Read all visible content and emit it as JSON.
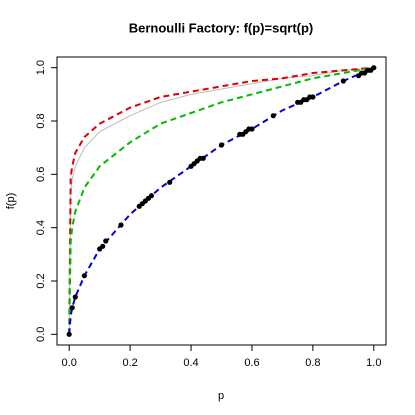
{
  "chart_data": {
    "type": "line",
    "title": "Bernoulli Factory: f(p)=sqrt(p)",
    "x_label": "p",
    "y_label": "f(p)",
    "x": [
      0,
      0.005,
      0.01,
      0.02,
      0.05,
      0.1,
      0.2,
      0.3,
      0.4,
      0.5,
      0.6,
      0.7,
      0.8,
      0.9,
      1
    ],
    "series": [
      {
        "color": "#bbbbbb",
        "dash": "solid",
        "values": [
          0,
          0.53,
          0.58,
          0.63,
          0.7,
          0.76,
          0.82,
          0.87,
          0.9,
          0.92,
          0.94,
          0.96,
          0.97,
          0.99,
          1
        ]
      },
      {
        "color": "#dd0000",
        "dash": "dashed",
        "values": [
          0,
          0.59,
          0.63,
          0.68,
          0.74,
          0.79,
          0.85,
          0.89,
          0.91,
          0.93,
          0.95,
          0.96,
          0.98,
          0.99,
          1
        ]
      },
      {
        "color": "#00bb00",
        "dash": "dashed",
        "values": [
          0,
          0.35,
          0.4,
          0.46,
          0.55,
          0.63,
          0.72,
          0.79,
          0.83,
          0.87,
          0.9,
          0.93,
          0.96,
          0.98,
          1
        ]
      },
      {
        "color": "#0000dd",
        "dash": "dashed",
        "values": [
          0,
          0.07,
          0.1,
          0.14,
          0.22,
          0.32,
          0.45,
          0.55,
          0.63,
          0.71,
          0.77,
          0.84,
          0.89,
          0.95,
          1
        ]
      }
    ],
    "points": {
      "color": "#000000",
      "x": [
        0,
        0.01,
        0.02,
        0.05,
        0.1,
        0.11,
        0.12,
        0.17,
        0.23,
        0.24,
        0.25,
        0.26,
        0.27,
        0.33,
        0.4,
        0.41,
        0.42,
        0.43,
        0.44,
        0.5,
        0.56,
        0.57,
        0.58,
        0.59,
        0.6,
        0.67,
        0.75,
        0.76,
        0.77,
        0.78,
        0.79,
        0.8,
        0.9,
        0.95,
        0.96,
        0.97,
        0.98,
        0.99,
        1
      ],
      "values": [
        0,
        0.1,
        0.14,
        0.22,
        0.32,
        0.33,
        0.35,
        0.41,
        0.48,
        0.49,
        0.5,
        0.51,
        0.52,
        0.57,
        0.63,
        0.64,
        0.65,
        0.66,
        0.66,
        0.71,
        0.75,
        0.75,
        0.76,
        0.77,
        0.77,
        0.82,
        0.87,
        0.87,
        0.88,
        0.88,
        0.89,
        0.89,
        0.95,
        0.97,
        0.98,
        0.98,
        0.99,
        0.99,
        1
      ]
    },
    "xlim": [
      -0.04,
      1.04
    ],
    "ylim": [
      -0.04,
      1.04
    ],
    "xticks": [
      {
        "value": 0,
        "label": "0.0"
      },
      {
        "value": 0.2,
        "label": "0.2"
      },
      {
        "value": 0.4,
        "label": "0.4"
      },
      {
        "value": 0.6,
        "label": "0.6"
      },
      {
        "value": 0.8,
        "label": "0.8"
      },
      {
        "value": 1,
        "label": "1.0"
      }
    ],
    "yticks": [
      {
        "value": 0,
        "label": "0.0"
      },
      {
        "value": 0.2,
        "label": "0.2"
      },
      {
        "value": 0.4,
        "label": "0.4"
      },
      {
        "value": 0.6,
        "label": "0.6"
      },
      {
        "value": 0.8,
        "label": "0.8"
      },
      {
        "value": 1,
        "label": "1.0"
      }
    ]
  }
}
